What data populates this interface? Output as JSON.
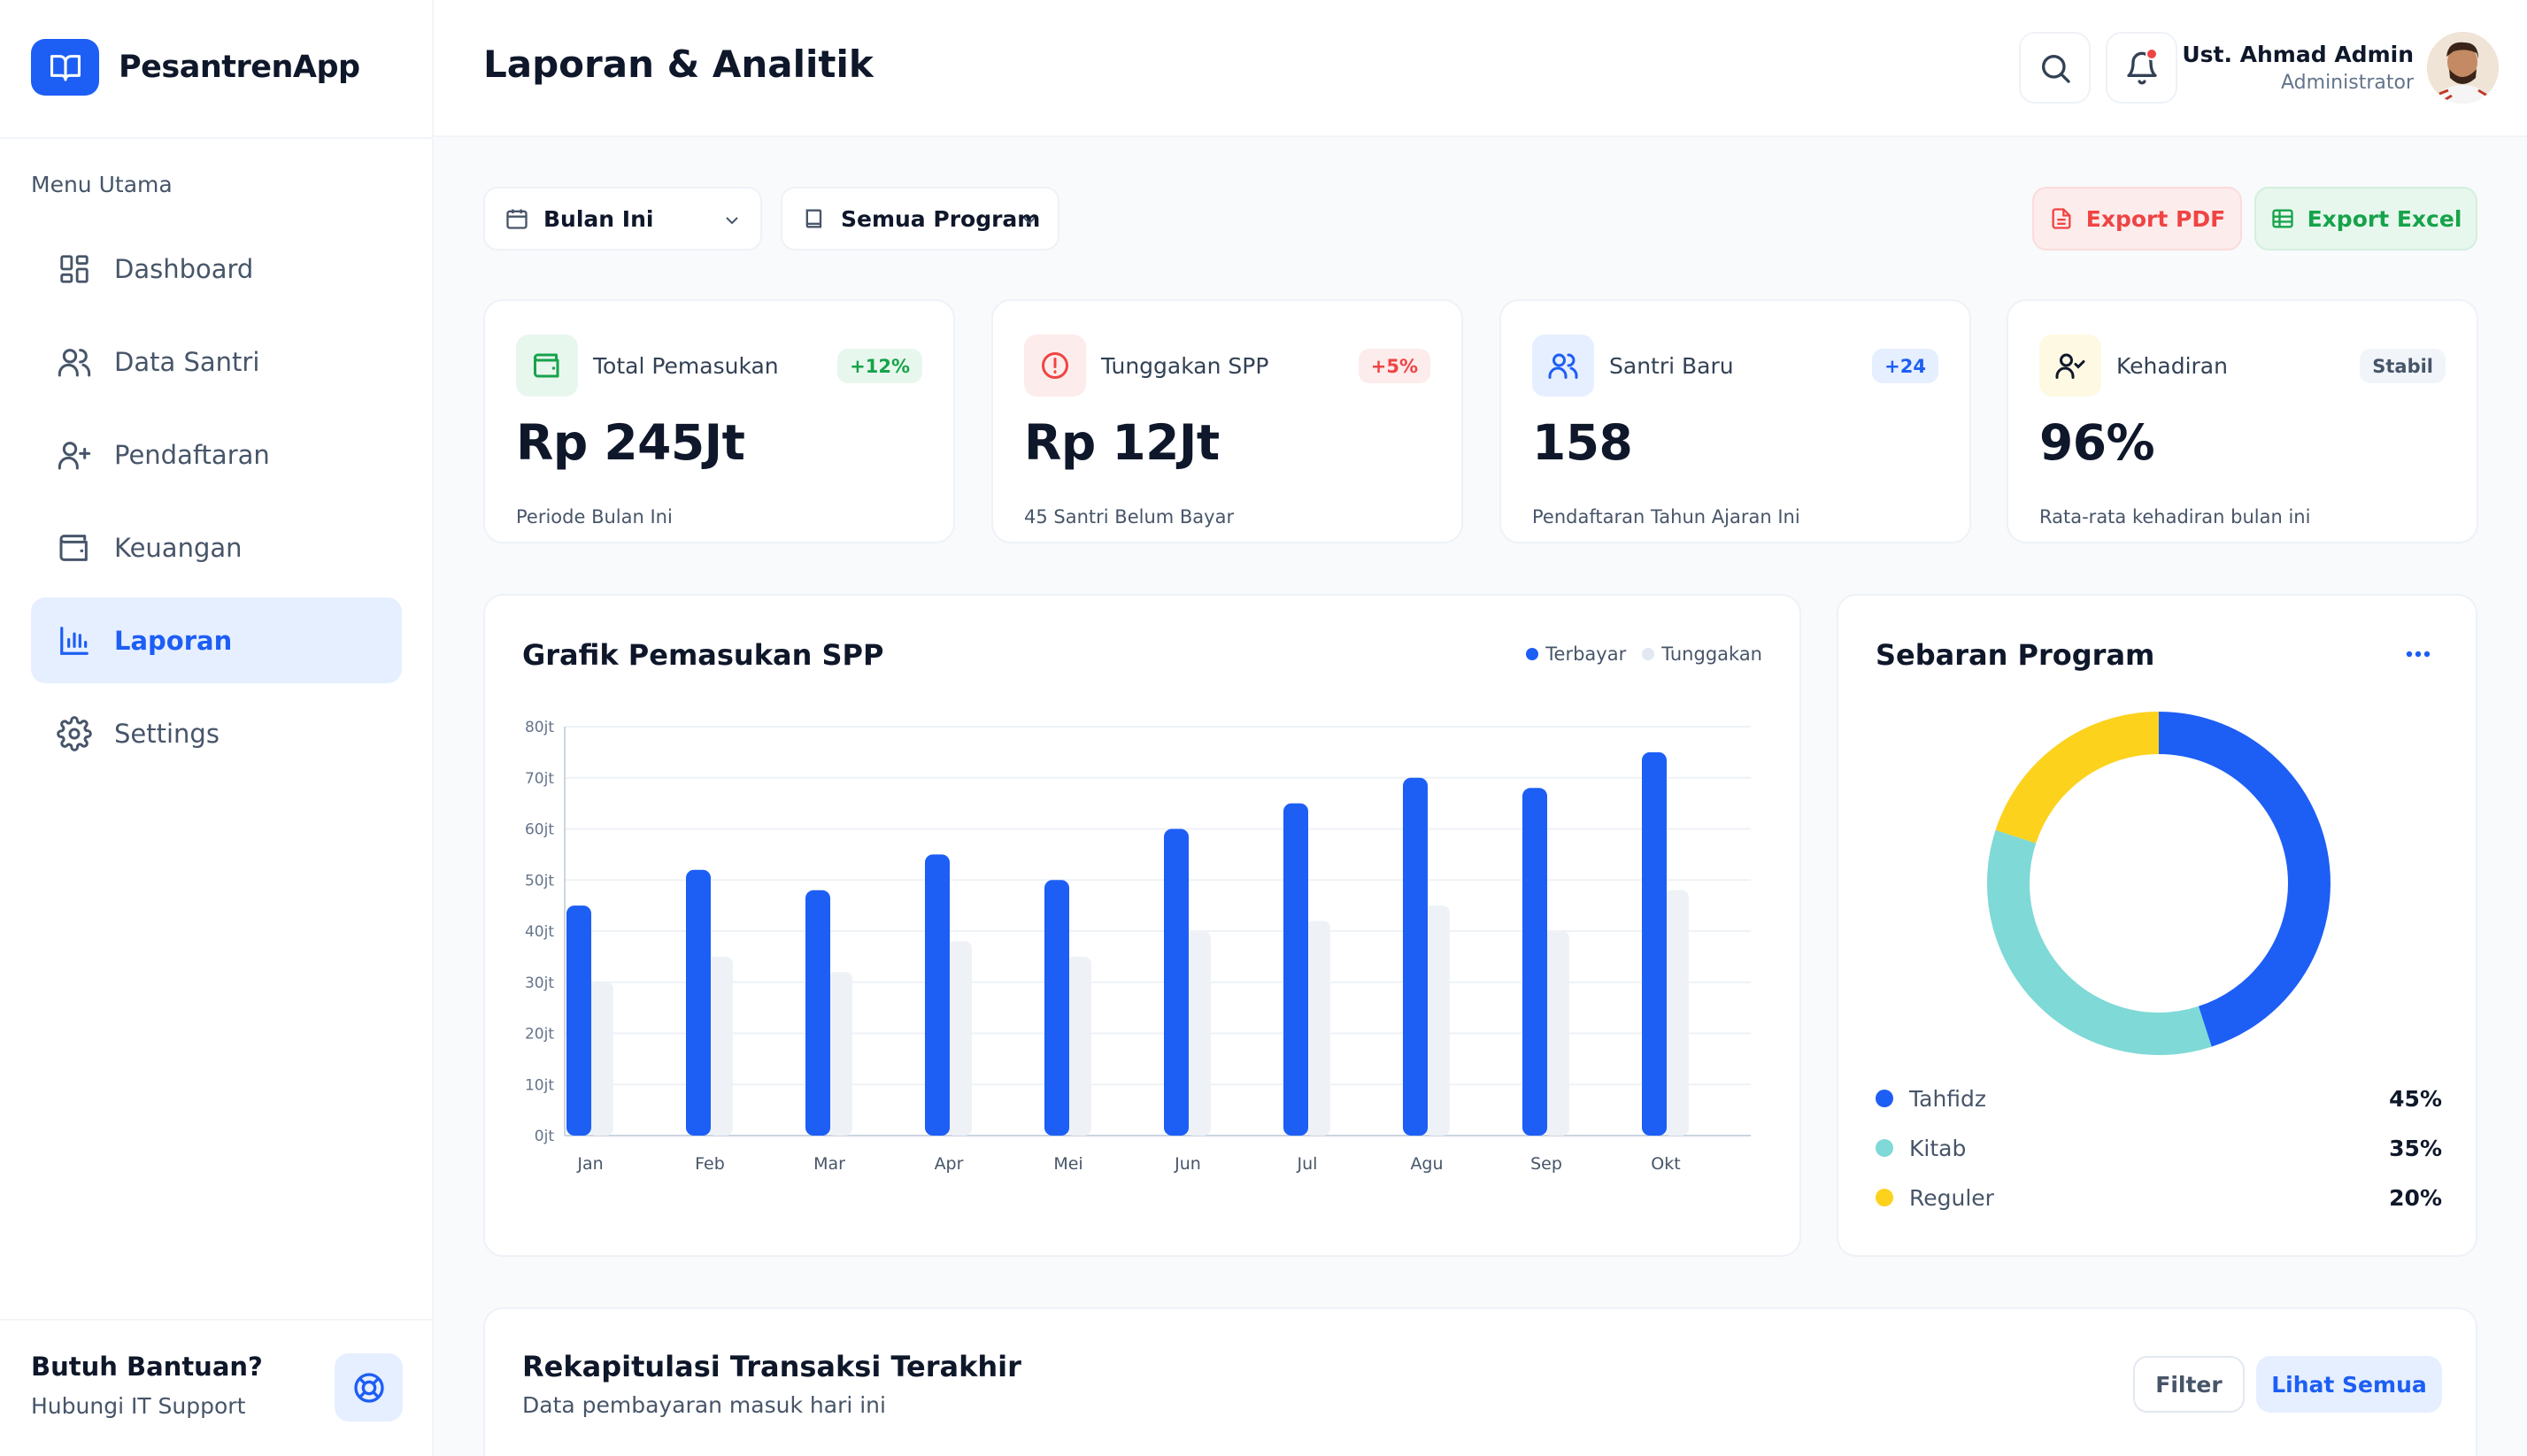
{
  "app": {
    "name": "PesantrenApp"
  },
  "sidebar": {
    "menu_title": "Menu Utama",
    "items": [
      {
        "label": "Dashboard",
        "icon": "dashboard-icon"
      },
      {
        "label": "Data Santri",
        "icon": "users-icon"
      },
      {
        "label": "Pendaftaran",
        "icon": "user-plus-icon"
      },
      {
        "label": "Keuangan",
        "icon": "wallet-icon"
      },
      {
        "label": "Laporan",
        "icon": "bar-chart-icon",
        "active": true
      },
      {
        "label": "Settings",
        "icon": "gear-icon"
      }
    ],
    "help": {
      "title": "Butuh Bantuan?",
      "subtitle": "Hubungi IT Support"
    }
  },
  "header": {
    "title": "Laporan & Analitik",
    "user": {
      "name": "Ust. Ahmad Admin",
      "role": "Administrator"
    }
  },
  "filters": {
    "period": "Bulan Ini",
    "program": "Semua Program"
  },
  "actions": {
    "export_pdf": "Export PDF",
    "export_excel": "Export Excel"
  },
  "stats": [
    {
      "label": "Total Pemasukan",
      "badge": "+12%",
      "value": "Rp 245Jt",
      "desc": "Periode Bulan Ini"
    },
    {
      "label": "Tunggakan SPP",
      "badge": "+5%",
      "value": "Rp 12Jt",
      "desc": "45 Santri Belum Bayar"
    },
    {
      "label": "Santri Baru",
      "badge": "+24",
      "value": "158",
      "desc": "Pendaftaran Tahun Ajaran Ini"
    },
    {
      "label": "Kehadiran",
      "badge": "Stabil",
      "value": "96%",
      "desc": "Rata-rata kehadiran bulan ini"
    }
  ],
  "colors": {
    "primary": "#1d5ef5",
    "muted_bar": "#eef2f7",
    "tahfidz": "#1d5ef5",
    "kitab": "#7fd9d6",
    "reguler": "#fcd21d"
  },
  "chart_data": [
    {
      "type": "bar",
      "title": "Grafik Pemasukan SPP",
      "categories": [
        "Jan",
        "Feb",
        "Mar",
        "Apr",
        "Mei",
        "Jun",
        "Jul",
        "Agu",
        "Sep",
        "Okt"
      ],
      "series": [
        {
          "name": "Terbayar",
          "values": [
            45,
            52,
            48,
            55,
            50,
            60,
            65,
            70,
            68,
            75
          ]
        },
        {
          "name": "Tunggakan",
          "values": [
            30,
            35,
            32,
            38,
            35,
            40,
            42,
            45,
            40,
            48
          ]
        }
      ],
      "y_ticks": [
        "0jt",
        "10jt",
        "20jt",
        "30jt",
        "40jt",
        "50jt",
        "60jt",
        "70jt",
        "80jt"
      ],
      "ylim": [
        0,
        80
      ],
      "grid": true,
      "legend": "top-right"
    },
    {
      "type": "pie",
      "title": "Sebaran Program",
      "categories": [
        "Tahfidz",
        "Kitab",
        "Reguler"
      ],
      "values": [
        45,
        35,
        20
      ],
      "labels": [
        "45%",
        "35%",
        "20%"
      ],
      "legend": "bottom"
    }
  ],
  "table": {
    "title": "Rekapitulasi Transaksi Terakhir",
    "subtitle": "Data pembayaran masuk hari ini",
    "filter_label": "Filter",
    "see_all_label": "Lihat Semua"
  }
}
